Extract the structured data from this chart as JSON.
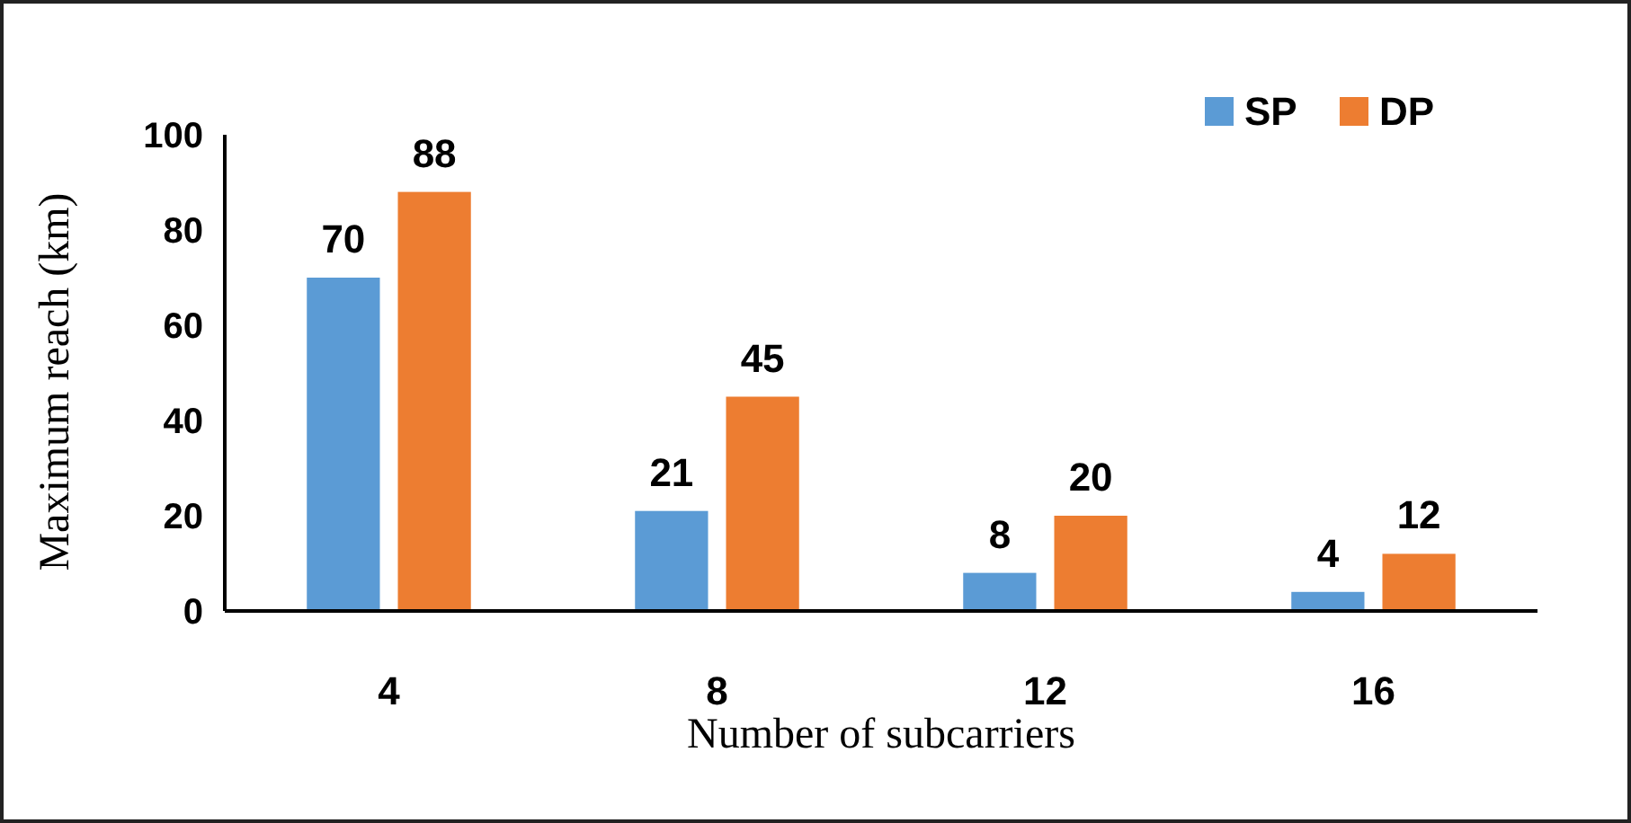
{
  "chart_data": {
    "type": "bar",
    "xlabel": "Number of subcarriers",
    "ylabel": "Maximum reach (km)",
    "categories": [
      "4",
      "8",
      "12",
      "16"
    ],
    "series": [
      {
        "name": "SP",
        "color": "#5b9bd5",
        "values": [
          70,
          21,
          8,
          4
        ]
      },
      {
        "name": "DP",
        "color": "#ed7d31",
        "values": [
          88,
          45,
          20,
          12
        ]
      }
    ],
    "ylim": [
      0,
      100
    ],
    "yticks": [
      0,
      20,
      40,
      60,
      80,
      100
    ],
    "grid": false,
    "legend": "top right",
    "data_labels": true
  }
}
